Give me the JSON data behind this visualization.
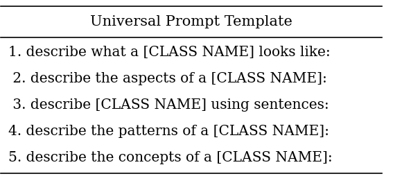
{
  "title": "Universal Prompt Template",
  "rows": [
    "1. describe what a [CLASS NAME] looks like:",
    " 2. describe the aspects of a [CLASS NAME]:",
    " 3. describe [CLASS NAME] using sentences:",
    "4. describe the patterns of a [CLASS NAME]:",
    "5. describe the concepts of a [CLASS NAME]:"
  ],
  "bg_color": "#ffffff",
  "text_color": "#000000",
  "title_fontsize": 15,
  "row_fontsize": 14.5,
  "figsize": [
    5.8,
    2.64
  ],
  "dpi": 100
}
